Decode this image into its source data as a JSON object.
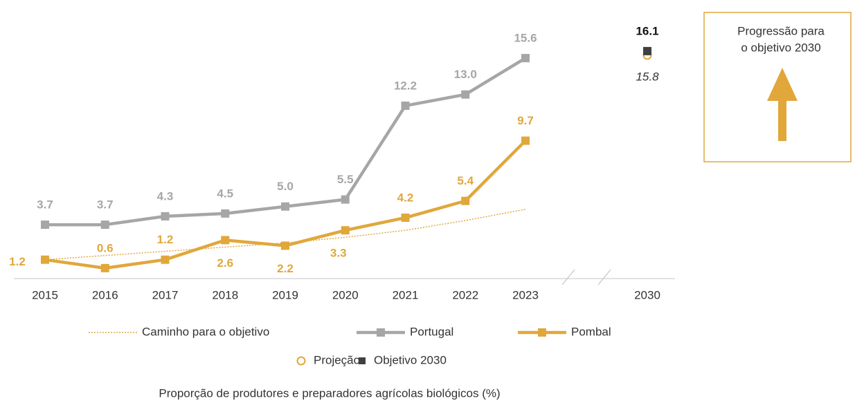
{
  "chart_data": {
    "type": "line",
    "caption": "Proporção de produtores e preparadores agrícolas biológicos (%)",
    "box_text": [
      "Progressão para",
      "o objetivo 2030"
    ],
    "categories": [
      "2015",
      "2016",
      "2017",
      "2018",
      "2019",
      "2020",
      "2021",
      "2022",
      "2023",
      "2030"
    ],
    "ylim": [
      0,
      19.75
    ],
    "series": [
      {
        "name": "Caminho para o objetivo",
        "color": "#e1a73b",
        "style": "dotted",
        "values": [
          1.2,
          1.5,
          1.8,
          2.1,
          2.4,
          2.8,
          3.3,
          4.0,
          4.8,
          null
        ]
      },
      {
        "name": "Portugal",
        "color": "#a6a6a6",
        "style": "line",
        "values": [
          3.7,
          3.7,
          4.3,
          4.5,
          5.0,
          5.5,
          12.2,
          13.0,
          15.6,
          null
        ],
        "value_labels": [
          "3.7",
          "3.7",
          "4.3",
          "4.5",
          "5.0",
          "5.5",
          "12.2",
          "13.0",
          "15.6",
          null
        ]
      },
      {
        "name": "Pombal",
        "color": "#e1a73b",
        "style": "line",
        "values": [
          1.2,
          0.6,
          1.2,
          2.6,
          2.2,
          3.3,
          4.2,
          5.4,
          9.7,
          null
        ],
        "value_labels": [
          "1.2",
          "0.6",
          "1.2",
          "2.6",
          "2.2",
          "3.3",
          "4.2",
          "5.4",
          "9.7",
          null
        ]
      },
      {
        "name": "Projeção",
        "color": "#e1a73b",
        "style": "circle",
        "values": [
          null,
          null,
          null,
          null,
          null,
          null,
          null,
          null,
          null,
          15.8
        ]
      },
      {
        "name": "Objetivo 2030",
        "color": "#404040",
        "style": "square",
        "values": [
          null,
          null,
          null,
          null,
          null,
          null,
          null,
          null,
          null,
          16.1
        ]
      }
    ]
  }
}
